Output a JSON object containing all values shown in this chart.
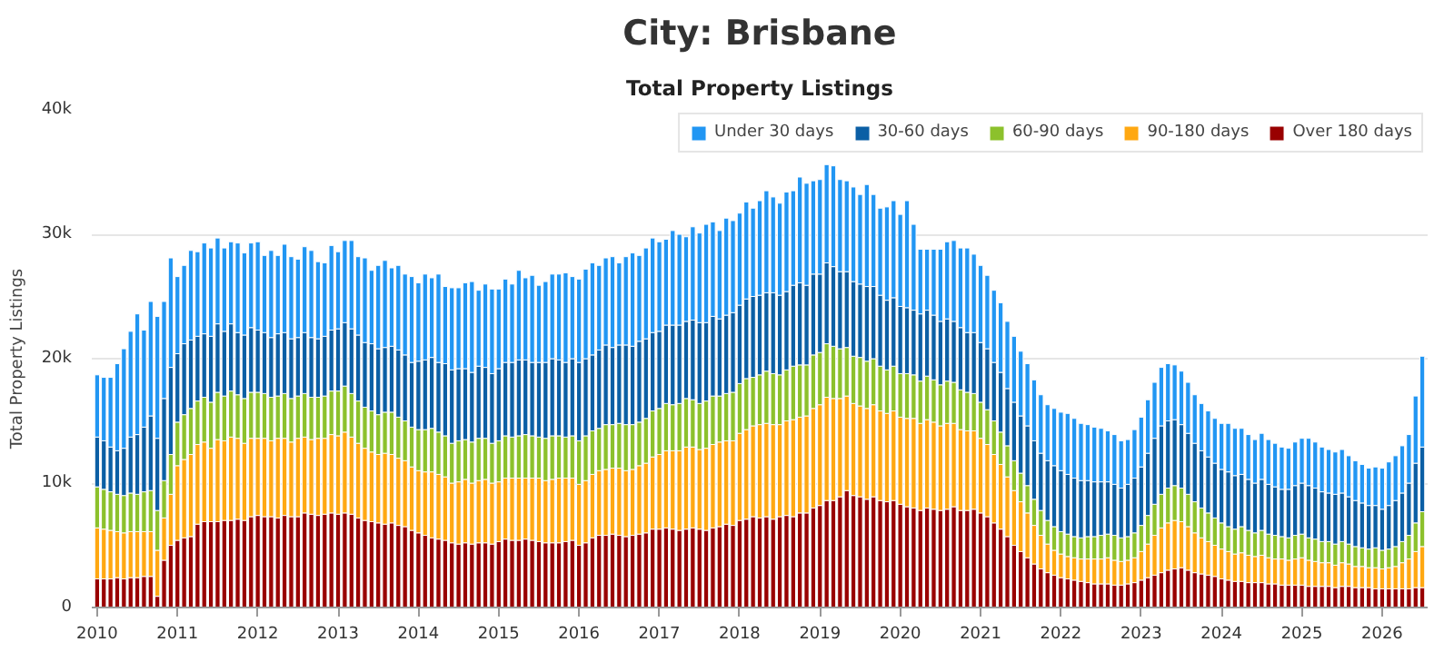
{
  "chart_data": {
    "type": "bar",
    "stacked": true,
    "title": "City: Brisbane",
    "subtitle": "Total Property Listings",
    "ylabel": "Total Property Listings",
    "categories": [
      "2010",
      null,
      null,
      null,
      null,
      null,
      null,
      null,
      null,
      null,
      null,
      null,
      "2011",
      null,
      null,
      null,
      null,
      null,
      null,
      null,
      null,
      null,
      null,
      null,
      "2012",
      null,
      null,
      null,
      null,
      null,
      null,
      null,
      null,
      null,
      null,
      null,
      "2013",
      null,
      null,
      null,
      null,
      null,
      null,
      null,
      null,
      null,
      null,
      null,
      "2014",
      null,
      null,
      null,
      null,
      null,
      null,
      null,
      null,
      null,
      null,
      null,
      "2015",
      null,
      null,
      null,
      null,
      null,
      null,
      null,
      null,
      null,
      null,
      null,
      "2016",
      null,
      null,
      null,
      null,
      null,
      null,
      null,
      null,
      null,
      null,
      null,
      "2017",
      null,
      null,
      null,
      null,
      null,
      null,
      null,
      null,
      null,
      null,
      null,
      "2018",
      null,
      null,
      null,
      null,
      null,
      null,
      null,
      null,
      null,
      null,
      null,
      "2019",
      null,
      null,
      null,
      null,
      null,
      null,
      null,
      null,
      null,
      null,
      null,
      "2020",
      null,
      null,
      null,
      null,
      null,
      null,
      null,
      null,
      null,
      null,
      null,
      "2021",
      null,
      null,
      null,
      null,
      null,
      null,
      null,
      null,
      null,
      null,
      null,
      "2022",
      null,
      null,
      null,
      null,
      null,
      null,
      null,
      null,
      null,
      null,
      null,
      "2023",
      null,
      null,
      null,
      null,
      null,
      null,
      null,
      null,
      null,
      null,
      null,
      "2024",
      null,
      null,
      null,
      null,
      null,
      null,
      null,
      null,
      null,
      null,
      null,
      "2025",
      null,
      null,
      null,
      null,
      null,
      null,
      null,
      null,
      null,
      null,
      null,
      "2026",
      null,
      null,
      null,
      null,
      null,
      null
    ],
    "ylim": [
      0,
      40000
    ],
    "yticks": [
      {
        "value": 0,
        "label": "0"
      },
      {
        "value": 10000,
        "label": "10k"
      },
      {
        "value": 20000,
        "label": "20k"
      },
      {
        "value": 30000,
        "label": "30k"
      },
      {
        "value": 40000,
        "label": "40k"
      }
    ],
    "grid": "y",
    "legend": "top right",
    "series": [
      {
        "name": "Over 180 days",
        "color": "#990000",
        "values": [
          2300,
          2300,
          2300,
          2400,
          2300,
          2400,
          2400,
          2500,
          2500,
          900,
          3800,
          5000,
          5400,
          5600,
          5700,
          6700,
          6900,
          6900,
          6900,
          7000,
          7000,
          7100,
          7000,
          7300,
          7400,
          7300,
          7300,
          7200,
          7400,
          7300,
          7300,
          7600,
          7500,
          7400,
          7500,
          7600,
          7500,
          7600,
          7500,
          7200,
          7000,
          6900,
          6800,
          6700,
          6800,
          6600,
          6500,
          6200,
          6000,
          5800,
          5600,
          5500,
          5400,
          5200,
          5100,
          5200,
          5100,
          5200,
          5200,
          5100,
          5300,
          5500,
          5400,
          5400,
          5500,
          5400,
          5300,
          5200,
          5200,
          5200,
          5300,
          5400,
          5000,
          5200,
          5600,
          5800,
          5800,
          5900,
          5800,
          5700,
          5800,
          5900,
          6000,
          6300,
          6300,
          6400,
          6300,
          6200,
          6300,
          6400,
          6300,
          6200,
          6400,
          6500,
          6700,
          6600,
          7000,
          7100,
          7300,
          7200,
          7300,
          7100,
          7300,
          7400,
          7300,
          7600,
          7600,
          8000,
          8200,
          8600,
          8600,
          8900,
          9400,
          9000,
          8900,
          8700,
          8900,
          8600,
          8500,
          8600,
          8300,
          8100,
          8000,
          7800,
          8000,
          7900,
          7800,
          7900,
          8100,
          7800,
          7800,
          7900,
          7600,
          7300,
          6800,
          6300,
          5700,
          5000,
          4500,
          4000,
          3500,
          3100,
          2800,
          2600,
          2400,
          2300,
          2200,
          2100,
          2000,
          1900,
          1900,
          1900,
          1800,
          1800,
          1900,
          2000,
          2200,
          2400,
          2600,
          2800,
          3000,
          3100,
          3200,
          3000,
          2800,
          2700,
          2600,
          2500,
          2300,
          2200,
          2100,
          2100,
          2000,
          2000,
          2000,
          1900,
          1900,
          1800,
          1800,
          1800,
          1800,
          1700,
          1700,
          1700,
          1700,
          1600,
          1700,
          1700,
          1600,
          1600,
          1600,
          1500,
          1500,
          1500,
          1500,
          1500,
          1500,
          1600,
          1600
        ]
      },
      {
        "name": "90-180 days",
        "color": "#ffa812",
        "values": [
          4100,
          4000,
          3900,
          3700,
          3700,
          3700,
          3700,
          3600,
          3600,
          3700,
          3400,
          4100,
          6000,
          6300,
          6600,
          6400,
          6400,
          5900,
          6600,
          6400,
          6700,
          6500,
          6200,
          6300,
          6200,
          6300,
          6100,
          6400,
          6200,
          6000,
          6300,
          6100,
          6000,
          6200,
          6100,
          6300,
          6300,
          6500,
          6200,
          6000,
          5800,
          5600,
          5500,
          5700,
          5500,
          5400,
          5300,
          5100,
          5000,
          5100,
          5300,
          5200,
          5100,
          4800,
          5000,
          5100,
          4900,
          5000,
          5100,
          4900,
          4800,
          4900,
          5000,
          5000,
          4900,
          5000,
          5100,
          5000,
          5100,
          5200,
          5100,
          5000,
          4900,
          5000,
          5100,
          5200,
          5300,
          5300,
          5400,
          5300,
          5300,
          5500,
          5600,
          5800,
          6000,
          6200,
          6300,
          6400,
          6600,
          6500,
          6400,
          6600,
          6700,
          6800,
          6700,
          6800,
          7000,
          7200,
          7300,
          7500,
          7500,
          7600,
          7400,
          7600,
          7800,
          7700,
          7800,
          8000,
          8100,
          8300,
          8200,
          7900,
          7600,
          7400,
          7300,
          7300,
          7400,
          7200,
          7100,
          7200,
          7000,
          7100,
          7200,
          7000,
          7100,
          7000,
          6800,
          6900,
          6700,
          6500,
          6400,
          6300,
          6000,
          5800,
          5500,
          5200,
          4800,
          4400,
          4000,
          3600,
          3100,
          2700,
          2300,
          2000,
          1900,
          1800,
          1800,
          1800,
          1900,
          2000,
          2000,
          2100,
          2000,
          1900,
          1900,
          2000,
          2300,
          2700,
          3200,
          3600,
          3800,
          3900,
          3700,
          3500,
          3200,
          2900,
          2700,
          2500,
          2400,
          2300,
          2200,
          2300,
          2200,
          2100,
          2200,
          2100,
          2000,
          2100,
          2000,
          2100,
          2200,
          2100,
          2000,
          1900,
          1900,
          1800,
          1900,
          1800,
          1700,
          1700,
          1600,
          1700,
          1600,
          1700,
          1800,
          2100,
          2400,
          2900,
          3300
        ]
      },
      {
        "name": "60-90 days",
        "color": "#8cc12c",
        "values": [
          3300,
          3200,
          3100,
          3000,
          3000,
          3100,
          3000,
          3200,
          3300,
          3200,
          3000,
          3200,
          3500,
          3600,
          3700,
          3500,
          3600,
          3700,
          3800,
          3600,
          3700,
          3500,
          3600,
          3700,
          3700,
          3600,
          3500,
          3400,
          3600,
          3500,
          3400,
          3500,
          3400,
          3300,
          3400,
          3500,
          3600,
          3700,
          3500,
          3400,
          3300,
          3300,
          3200,
          3300,
          3400,
          3300,
          3200,
          3200,
          3300,
          3400,
          3500,
          3400,
          3300,
          3200,
          3300,
          3200,
          3300,
          3400,
          3300,
          3200,
          3300,
          3400,
          3300,
          3400,
          3500,
          3400,
          3300,
          3400,
          3500,
          3400,
          3300,
          3400,
          3500,
          3600,
          3500,
          3400,
          3600,
          3500,
          3600,
          3700,
          3600,
          3500,
          3600,
          3700,
          3700,
          3800,
          3700,
          3800,
          3900,
          3800,
          3700,
          3800,
          3900,
          3700,
          3800,
          3900,
          4000,
          4100,
          3900,
          4000,
          4200,
          4100,
          4000,
          4100,
          4300,
          4200,
          4100,
          4300,
          4200,
          4300,
          4200,
          4000,
          3900,
          3800,
          3900,
          3800,
          3700,
          3600,
          3500,
          3600,
          3500,
          3600,
          3500,
          3400,
          3500,
          3400,
          3300,
          3400,
          3300,
          3200,
          3100,
          3000,
          2900,
          2800,
          2700,
          2600,
          2500,
          2400,
          2300,
          2200,
          2100,
          2000,
          1900,
          1900,
          1800,
          1800,
          1700,
          1700,
          1800,
          1800,
          1900,
          1900,
          2000,
          1900,
          1900,
          2000,
          2100,
          2300,
          2500,
          2700,
          2800,
          2800,
          2700,
          2600,
          2500,
          2400,
          2300,
          2200,
          2100,
          2000,
          2000,
          2100,
          2000,
          1900,
          2000,
          1900,
          1900,
          1800,
          1800,
          1900,
          1900,
          1800,
          1800,
          1700,
          1700,
          1700,
          1700,
          1600,
          1600,
          1500,
          1500,
          1600,
          1500,
          1500,
          1600,
          1700,
          1900,
          2300,
          2800
        ]
      },
      {
        "name": "30-60 days",
        "color": "#0b5fa5",
        "values": [
          4000,
          3900,
          3600,
          3500,
          3800,
          4500,
          4800,
          5200,
          6000,
          5800,
          6600,
          7000,
          5500,
          5700,
          5500,
          5200,
          5100,
          5300,
          5500,
          5200,
          5400,
          5000,
          5100,
          5200,
          5000,
          4900,
          4800,
          5000,
          4900,
          4800,
          4700,
          4900,
          4800,
          4700,
          4800,
          4900,
          5000,
          5100,
          5200,
          5300,
          5200,
          5400,
          5300,
          5200,
          5300,
          5400,
          5300,
          5200,
          5500,
          5600,
          5700,
          5600,
          5800,
          5900,
          5800,
          5700,
          5600,
          5800,
          5700,
          5600,
          5800,
          5900,
          6000,
          6100,
          6000,
          5900,
          6000,
          6100,
          6200,
          6100,
          6000,
          6200,
          6300,
          6200,
          6100,
          6300,
          6400,
          6200,
          6300,
          6400,
          6300,
          6500,
          6400,
          6300,
          6200,
          6300,
          6400,
          6300,
          6200,
          6400,
          6500,
          6300,
          6400,
          6200,
          6300,
          6400,
          6300,
          6400,
          6500,
          6400,
          6300,
          6500,
          6400,
          6300,
          6500,
          6600,
          6400,
          6500,
          6300,
          6500,
          6400,
          6200,
          6100,
          6000,
          5900,
          6000,
          5800,
          5700,
          5600,
          5500,
          5400,
          5300,
          5200,
          5400,
          5300,
          5200,
          5100,
          5000,
          4900,
          5000,
          4800,
          4900,
          4800,
          4900,
          4700,
          4800,
          4600,
          4700,
          4600,
          4800,
          4700,
          4600,
          4800,
          4900,
          4900,
          4800,
          4700,
          4600,
          4500,
          4400,
          4300,
          4200,
          4100,
          4000,
          4200,
          4400,
          4700,
          5000,
          5300,
          5500,
          5400,
          5300,
          5100,
          4900,
          4700,
          4600,
          4500,
          4400,
          4300,
          4400,
          4300,
          4200,
          4100,
          4000,
          4100,
          4000,
          3900,
          3800,
          3900,
          4000,
          4100,
          4200,
          4100,
          4000,
          3900,
          4000,
          3900,
          3800,
          3700,
          3600,
          3500,
          3400,
          3300,
          3500,
          3700,
          3900,
          4200,
          4800,
          5200
        ]
      },
      {
        "name": "Under 30 days",
        "color": "#2196f3",
        "values": [
          5000,
          5100,
          5600,
          7000,
          8000,
          8500,
          9700,
          7800,
          9200,
          9800,
          7800,
          8800,
          6200,
          6300,
          7200,
          6800,
          7300,
          7100,
          6900,
          6700,
          6600,
          7200,
          6600,
          6800,
          7100,
          6200,
          7000,
          6300,
          7100,
          6600,
          6300,
          6900,
          7000,
          6200,
          5900,
          6800,
          6200,
          6600,
          7100,
          6300,
          6800,
          5900,
          6700,
          7000,
          6300,
          6800,
          6500,
          6900,
          6300,
          6900,
          6400,
          7100,
          6200,
          6600,
          6500,
          6900,
          7300,
          6100,
          6700,
          6800,
          6400,
          6700,
          6300,
          7200,
          6600,
          7000,
          6200,
          6500,
          6800,
          6900,
          7200,
          6600,
          6700,
          7200,
          7400,
          6800,
          7000,
          7300,
          6600,
          7100,
          7500,
          6900,
          7300,
          7600,
          7200,
          6900,
          7600,
          7300,
          6800,
          7500,
          7200,
          7900,
          7600,
          7100,
          7800,
          7400,
          7400,
          7800,
          7100,
          7600,
          8200,
          7700,
          7400,
          8000,
          7600,
          8500,
          8200,
          7500,
          7600,
          7900,
          8100,
          7400,
          7300,
          7600,
          7200,
          8200,
          7400,
          7000,
          7500,
          7800,
          7400,
          8600,
          6900,
          5200,
          4900,
          5300,
          5800,
          6200,
          6500,
          6400,
          6800,
          6300,
          6200,
          5900,
          5800,
          5600,
          5400,
          5300,
          5200,
          5000,
          4900,
          4700,
          4500,
          4600,
          4700,
          4900,
          4800,
          4600,
          4500,
          4400,
          4300,
          4100,
          4000,
          3800,
          3600,
          3900,
          4000,
          4300,
          4500,
          4700,
          4600,
          4400,
          4300,
          4100,
          3900,
          3800,
          3700,
          3600,
          3700,
          3900,
          3800,
          3700,
          3600,
          3500,
          3700,
          3600,
          3500,
          3400,
          3300,
          3500,
          3600,
          3800,
          3700,
          3600,
          3500,
          3400,
          3500,
          3300,
          3200,
          3100,
          3000,
          3100,
          3300,
          3500,
          3600,
          3800,
          3900,
          5400,
          7300
        ]
      }
    ]
  }
}
